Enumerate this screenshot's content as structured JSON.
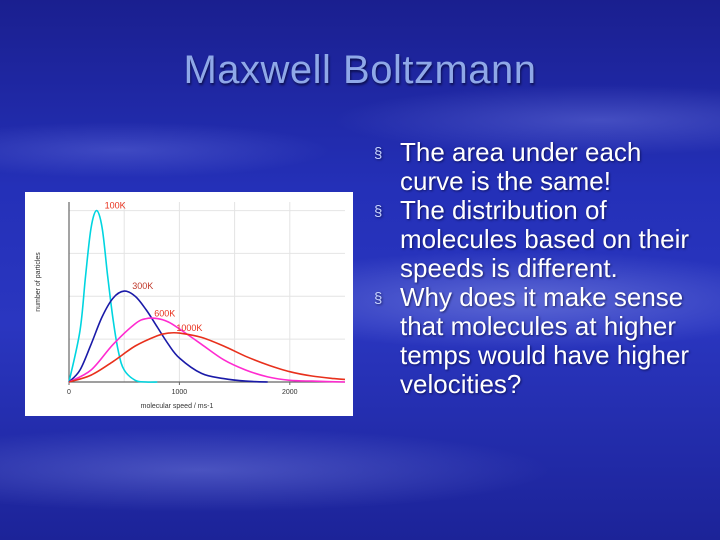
{
  "slide": {
    "title": "Maxwell Boltzmann",
    "bullets": [
      "The area under each curve is the same!",
      "The distribution of molecules based on their speeds is different.",
      "Why does it make sense that molecules at higher temps would have higher velocities?"
    ],
    "bullet_marker": "§"
  },
  "chart_data": {
    "type": "line",
    "xlabel": "molecular speed / ms-1",
    "ylabel": "number of particles",
    "xlim": [
      0,
      2500
    ],
    "x_ticks": [
      "0",
      "1000",
      "2000"
    ],
    "x_tick_values": [
      0,
      1000,
      2000
    ],
    "grid": true,
    "series": [
      {
        "name": "100K",
        "color": "#00d5e0",
        "x": [
          0,
          100,
          150,
          200,
          250,
          300,
          350,
          400,
          450,
          500,
          600,
          700,
          800
        ],
        "y": [
          0,
          0.3,
          0.62,
          0.9,
          1.0,
          0.9,
          0.62,
          0.36,
          0.17,
          0.07,
          0.01,
          0.0,
          0.0
        ]
      },
      {
        "name": "300K",
        "color": "#1a1aa8",
        "x": [
          0,
          100,
          200,
          300,
          400,
          500,
          600,
          700,
          800,
          900,
          1000,
          1200,
          1400,
          1600,
          1800
        ],
        "y": [
          0,
          0.07,
          0.22,
          0.38,
          0.49,
          0.53,
          0.5,
          0.42,
          0.32,
          0.22,
          0.14,
          0.05,
          0.02,
          0.005,
          0.0
        ]
      },
      {
        "name": "600K",
        "color": "#ff2bd0",
        "x": [
          0,
          200,
          400,
          600,
          700,
          800,
          900,
          1000,
          1200,
          1400,
          1600,
          1800,
          2000,
          2200,
          2500
        ],
        "y": [
          0,
          0.07,
          0.22,
          0.34,
          0.37,
          0.37,
          0.35,
          0.31,
          0.22,
          0.13,
          0.07,
          0.03,
          0.01,
          0.005,
          0.0
        ]
      },
      {
        "name": "1000K",
        "color": "#e8301c",
        "x": [
          0,
          200,
          400,
          600,
          800,
          900,
          1000,
          1200,
          1400,
          1600,
          1800,
          2000,
          2200,
          2400,
          2500
        ],
        "y": [
          0,
          0.04,
          0.12,
          0.21,
          0.27,
          0.285,
          0.285,
          0.26,
          0.21,
          0.15,
          0.1,
          0.06,
          0.035,
          0.02,
          0.015
        ]
      }
    ]
  }
}
